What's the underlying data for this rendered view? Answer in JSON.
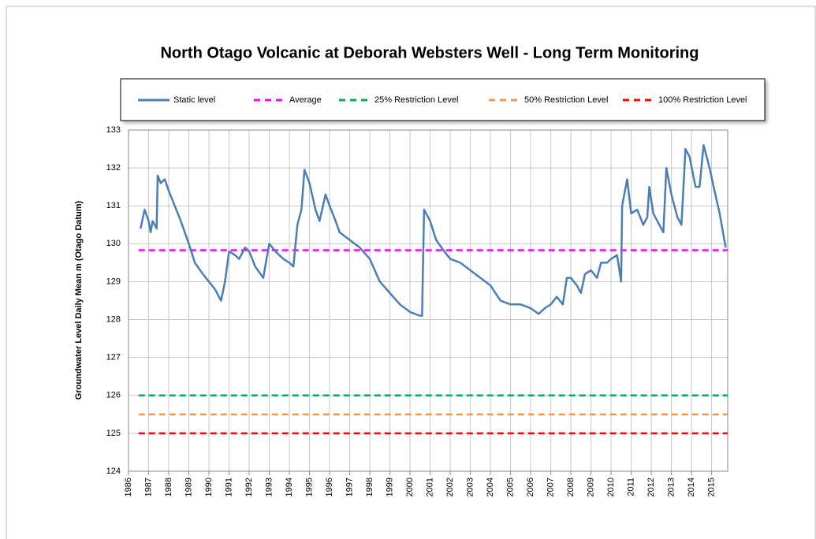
{
  "chart_data": {
    "type": "line",
    "title": "North Otago Volcanic at Deborah Websters Well - Long Term Monitoring",
    "y_label": "Groundwater Level Daily Mean m (Otago Datum)",
    "xlim": [
      1986,
      2015.8
    ],
    "ylim": [
      124,
      133
    ],
    "xticks": [
      1986,
      1987,
      1988,
      1989,
      1990,
      1991,
      1992,
      1993,
      1994,
      1995,
      1996,
      1997,
      1998,
      1999,
      2000,
      2001,
      2002,
      2003,
      2004,
      2005,
      2006,
      2007,
      2008,
      2009,
      2010,
      2011,
      2012,
      2013,
      2014,
      2015
    ],
    "yticks": [
      124,
      125,
      126,
      127,
      128,
      129,
      130,
      131,
      132,
      133
    ],
    "grid": true,
    "series": [
      {
        "name": "Static level",
        "color": "#4a7ebb",
        "style": "solid",
        "x": [
          1986.6,
          1986.8,
          1987.0,
          1987.1,
          1987.2,
          1987.4,
          1987.45,
          1987.6,
          1987.8,
          1988.0,
          1988.3,
          1988.6,
          1989.0,
          1989.3,
          1989.7,
          1990.0,
          1990.3,
          1990.6,
          1990.8,
          1991.0,
          1991.3,
          1991.5,
          1991.8,
          1992.0,
          1992.3,
          1992.7,
          1993.0,
          1993.3,
          1993.7,
          1994.0,
          1994.2,
          1994.4,
          1994.6,
          1994.75,
          1995.0,
          1995.3,
          1995.5,
          1995.8,
          1996.0,
          1996.3,
          1996.5,
          1997.0,
          1997.5,
          1998.0,
          1998.5,
          1999.0,
          1999.5,
          2000.0,
          2000.5,
          2000.6,
          2000.7,
          2001.0,
          2001.3,
          2001.7,
          2002.0,
          2002.5,
          2003.0,
          2003.5,
          2004.0,
          2004.5,
          2005.0,
          2005.5,
          2006.0,
          2006.4,
          2006.7,
          2007.0,
          2007.3,
          2007.6,
          2007.8,
          2008.0,
          2008.3,
          2008.5,
          2008.7,
          2009.0,
          2009.3,
          2009.5,
          2009.8,
          2010.0,
          2010.3,
          2010.5,
          2010.55,
          2010.8,
          2011.0,
          2011.3,
          2011.6,
          2011.8,
          2011.9,
          2012.1,
          2012.4,
          2012.6,
          2012.75,
          2013.0,
          2013.3,
          2013.5,
          2013.7,
          2013.9,
          2014.2,
          2014.4,
          2014.6,
          2014.9,
          2015.1,
          2015.4,
          2015.7
        ],
        "values": [
          130.4,
          130.9,
          130.6,
          130.3,
          130.6,
          130.4,
          131.8,
          131.6,
          131.7,
          131.4,
          131.0,
          130.6,
          130.0,
          129.5,
          129.2,
          129.0,
          128.8,
          128.5,
          129.0,
          129.8,
          129.7,
          129.6,
          129.9,
          129.8,
          129.4,
          129.1,
          130.0,
          129.8,
          129.6,
          129.5,
          129.4,
          130.5,
          130.9,
          131.95,
          131.6,
          130.9,
          130.6,
          131.3,
          131.0,
          130.6,
          130.3,
          130.1,
          129.9,
          129.6,
          129.0,
          128.7,
          128.4,
          128.2,
          128.1,
          128.1,
          130.9,
          130.6,
          130.1,
          129.8,
          129.6,
          129.5,
          129.3,
          129.1,
          128.9,
          128.5,
          128.4,
          128.4,
          128.3,
          128.15,
          128.3,
          128.4,
          128.6,
          128.4,
          129.1,
          129.1,
          128.9,
          128.7,
          129.2,
          129.3,
          129.1,
          129.5,
          129.5,
          129.6,
          129.7,
          129.0,
          131.0,
          131.7,
          130.8,
          130.9,
          130.5,
          130.7,
          131.5,
          130.8,
          130.5,
          130.3,
          132.0,
          131.3,
          130.7,
          130.5,
          132.5,
          132.3,
          131.5,
          131.5,
          132.6,
          132.0,
          131.5,
          130.8,
          129.9
        ]
      },
      {
        "name": "Average",
        "color": "#ff00ff",
        "style": "dashed",
        "x": [
          1986.5,
          2015.8
        ],
        "values": [
          129.83,
          129.83
        ]
      },
      {
        "name": "25% Restriction Level",
        "color": "#00b050",
        "style": "dashed",
        "x": [
          1986.5,
          2015.8
        ],
        "values": [
          126,
          126
        ]
      },
      {
        "name": "50% Restriction Level",
        "color": "#f79646",
        "style": "dashed",
        "x": [
          1986.5,
          2015.8
        ],
        "values": [
          125.5,
          125.5
        ]
      },
      {
        "name": "100% Restriction Level",
        "color": "#ff0000",
        "style": "dashed",
        "x": [
          1986.5,
          2015.8
        ],
        "values": [
          125,
          125
        ]
      }
    ]
  }
}
